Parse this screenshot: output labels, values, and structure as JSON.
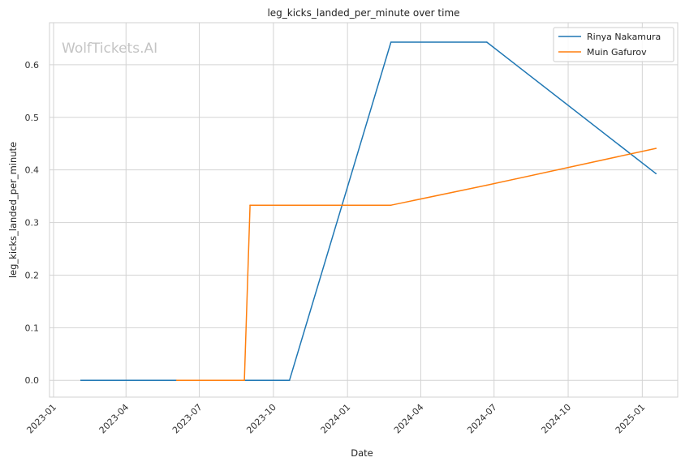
{
  "chart_data": {
    "type": "line",
    "title": "leg_kicks_landed_per_minute over time",
    "xlabel": "Date",
    "ylabel": "leg_kicks_landed_per_minute",
    "x_ticks": [
      "2023-01",
      "2023-04",
      "2023-07",
      "2023-10",
      "2024-01",
      "2024-04",
      "2024-07",
      "2024-10",
      "2025-01"
    ],
    "y_ticks": [
      "0.0",
      "0.1",
      "0.2",
      "0.3",
      "0.4",
      "0.5",
      "0.6"
    ],
    "xlim": [
      "2022-12-27",
      "2025-02-14"
    ],
    "ylim": [
      -0.032,
      0.68
    ],
    "grid": true,
    "legend_position": "top-right",
    "watermark": "WolfTickets.AI",
    "series": [
      {
        "name": "Rinya Nakamura",
        "color": "#1f77b4",
        "x": [
          "2023-02-04",
          "2023-10-21",
          "2024-02-24",
          "2024-06-22",
          "2025-01-18"
        ],
        "y": [
          0.0,
          0.0,
          0.643,
          0.643,
          0.393
        ]
      },
      {
        "name": "Muin Gafurov",
        "color": "#ff7f0e",
        "x": [
          "2023-06-03",
          "2023-08-26",
          "2023-09-02",
          "2024-02-24",
          "2024-06-22",
          "2025-01-18"
        ],
        "y": [
          0.0,
          0.0,
          0.333,
          0.333,
          0.371,
          0.441
        ]
      }
    ]
  }
}
